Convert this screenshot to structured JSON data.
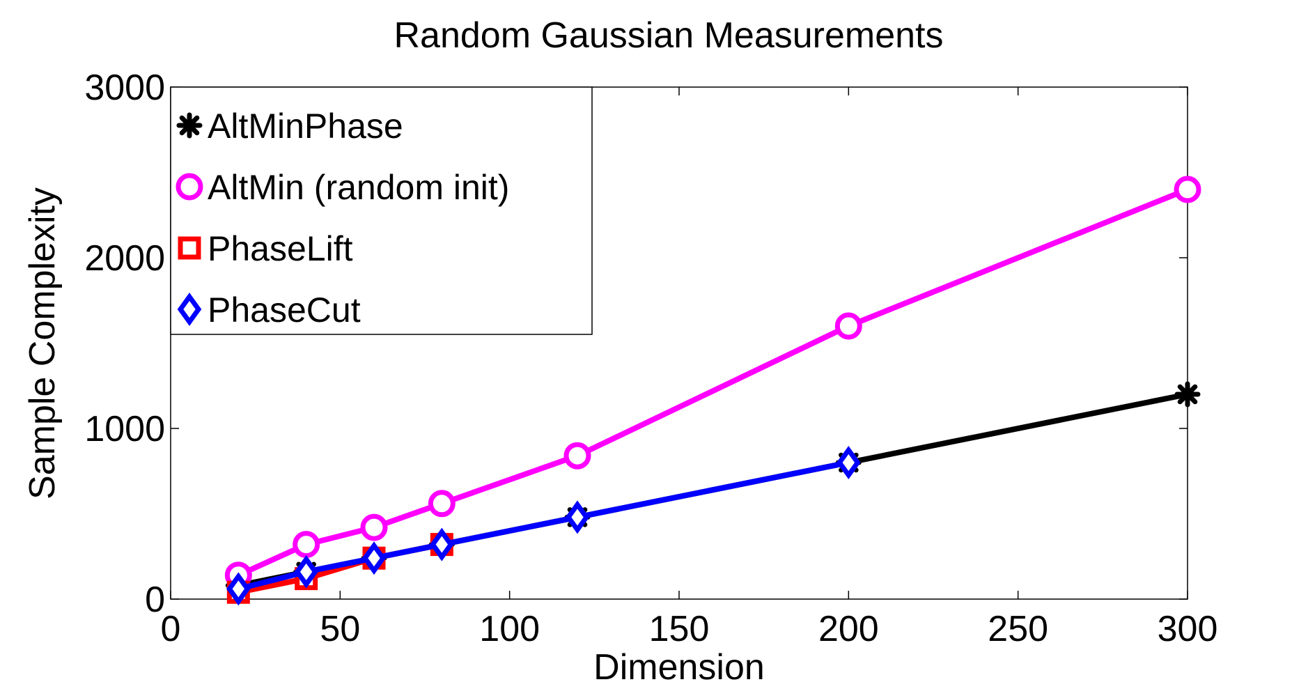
{
  "chart_data": {
    "type": "line",
    "title": "Random Gaussian Measurements",
    "xlabel": "Dimension",
    "ylabel": "Sample Complexity",
    "xlim": [
      0,
      300
    ],
    "ylim": [
      0,
      3000
    ],
    "xticks": [
      "0",
      "50",
      "100",
      "150",
      "200",
      "250",
      "300"
    ],
    "yticks": [
      "0",
      "1000",
      "2000",
      "3000"
    ],
    "grid": false,
    "legend_position": "top-left",
    "series": [
      {
        "name": "AltMinPhase",
        "color": "#000000",
        "marker": "asterisk",
        "x": [
          20,
          40,
          60,
          80,
          120,
          200,
          300
        ],
        "y": [
          80,
          160,
          240,
          320,
          480,
          800,
          1200
        ]
      },
      {
        "name": "AltMin (random init)",
        "color": "#ff00ff",
        "marker": "circle",
        "x": [
          20,
          40,
          60,
          80,
          120,
          200,
          300
        ],
        "y": [
          140,
          320,
          420,
          560,
          840,
          1600,
          2400
        ]
      },
      {
        "name": "PhaseLift",
        "color": "#ff0000",
        "marker": "square",
        "x": [
          20,
          40,
          60,
          80
        ],
        "y": [
          40,
          120,
          240,
          320
        ]
      },
      {
        "name": "PhaseCut",
        "color": "#0000ff",
        "marker": "diamond",
        "x": [
          20,
          40,
          60,
          80,
          120,
          200
        ],
        "y": [
          60,
          160,
          240,
          320,
          480,
          800
        ]
      }
    ]
  }
}
